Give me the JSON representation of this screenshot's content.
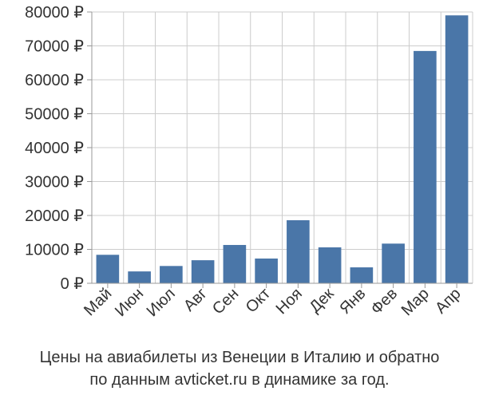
{
  "caption": {
    "line1": "Цены на авиабилеты из Венеции в Италию и обратно",
    "line2": "по данным avticket.ru в динамике за год."
  },
  "colors": {
    "bar": "#4a76a8",
    "grid": "#cccccc",
    "axis": "#999999",
    "text": "#333333"
  },
  "chart_data": {
    "type": "bar",
    "categories": [
      "Май",
      "Июн",
      "Июл",
      "Авг",
      "Сен",
      "Окт",
      "Ноя",
      "Дек",
      "Янв",
      "Фев",
      "Мар",
      "Апр"
    ],
    "values": [
      8400,
      3500,
      5100,
      6800,
      11300,
      7300,
      18600,
      10600,
      4700,
      11700,
      68500,
      79000
    ],
    "yticks": [
      "0 ₽",
      "10000 ₽",
      "20000 ₽",
      "30000 ₽",
      "40000 ₽",
      "50000 ₽",
      "60000 ₽",
      "70000 ₽",
      "80000 ₽"
    ],
    "ylim": [
      0,
      80000
    ],
    "grid": true,
    "title": "",
    "xlabel": "",
    "ylabel": ""
  }
}
